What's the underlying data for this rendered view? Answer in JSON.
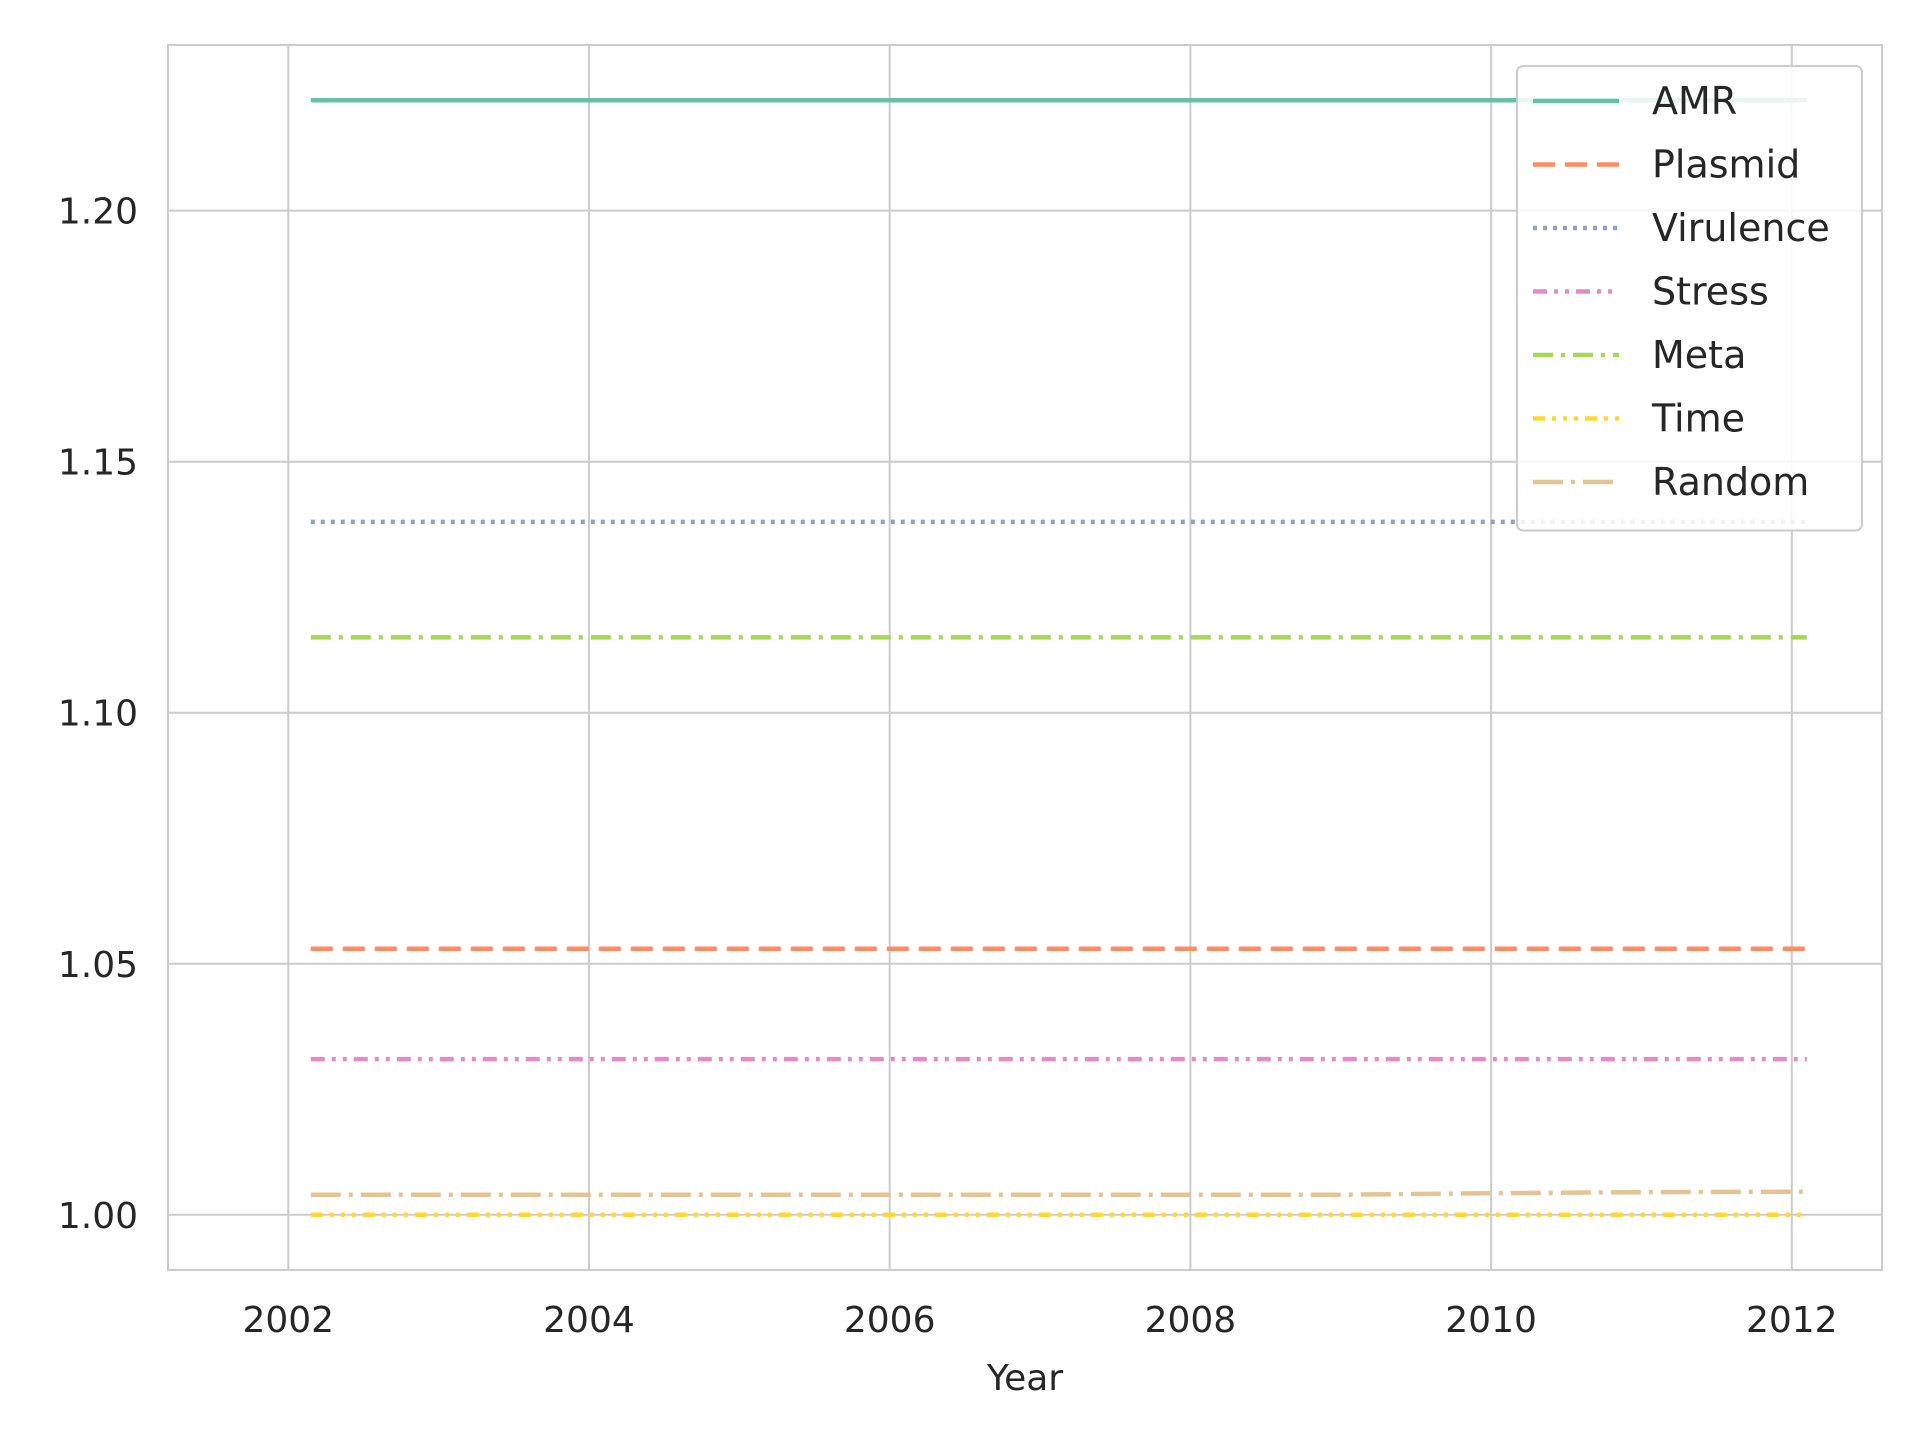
{
  "chart_data": {
    "type": "line",
    "title": "",
    "xlabel": "Year",
    "ylabel": "",
    "x": [
      2002.15,
      2003,
      2004,
      2005,
      2006,
      2007,
      2008,
      2009,
      2010,
      2011,
      2012.1
    ],
    "xlim": [
      2001.2,
      2012.6
    ],
    "ylim": [
      0.989,
      1.233
    ],
    "xticks": [
      2002,
      2004,
      2006,
      2008,
      2010,
      2012
    ],
    "yticks": [
      1.0,
      1.05,
      1.1,
      1.15,
      1.2
    ],
    "xtick_labels": [
      "2002",
      "2004",
      "2006",
      "2008",
      "2010",
      "2012"
    ],
    "ytick_labels": [
      "1.00",
      "1.05",
      "1.10",
      "1.15",
      "1.20"
    ],
    "grid": true,
    "legend_position": "top-right",
    "series": [
      {
        "name": "AMR",
        "color": "#66c2a5",
        "dash": "solid",
        "values": [
          1.222,
          1.222,
          1.222,
          1.222,
          1.222,
          1.222,
          1.222,
          1.222,
          1.222,
          1.222,
          1.222
        ]
      },
      {
        "name": "Plasmid",
        "color": "#fc8d62",
        "dash": "dashed",
        "values": [
          1.053,
          1.053,
          1.053,
          1.053,
          1.053,
          1.053,
          1.053,
          1.053,
          1.053,
          1.053,
          1.053
        ]
      },
      {
        "name": "Virulence",
        "color": "#8da0cb",
        "dash": "dotted",
        "values": [
          1.138,
          1.138,
          1.138,
          1.138,
          1.138,
          1.138,
          1.138,
          1.138,
          1.138,
          1.138,
          1.138
        ]
      },
      {
        "name": "Stress",
        "color": "#e78ac3",
        "dash": "dashdotdot",
        "values": [
          1.031,
          1.031,
          1.031,
          1.031,
          1.031,
          1.031,
          1.031,
          1.031,
          1.031,
          1.031,
          1.031
        ]
      },
      {
        "name": "Meta",
        "color": "#a6d854",
        "dash": "dashdot",
        "values": [
          1.115,
          1.115,
          1.115,
          1.115,
          1.115,
          1.115,
          1.115,
          1.115,
          1.115,
          1.115,
          1.115
        ]
      },
      {
        "name": "Time",
        "color": "#ffd92f",
        "dash": "dashdotdotdot",
        "values": [
          1.0,
          1.0,
          1.0,
          1.0,
          1.0,
          1.0,
          1.0,
          1.0,
          1.0,
          1.0,
          1.0
        ]
      },
      {
        "name": "Random",
        "color": "#e5c494",
        "dash": "longdashdot",
        "values": [
          1.004,
          1.004,
          1.004,
          1.004,
          1.004,
          1.004,
          1.004,
          1.004,
          1.0043,
          1.0045,
          1.0046
        ]
      }
    ]
  }
}
